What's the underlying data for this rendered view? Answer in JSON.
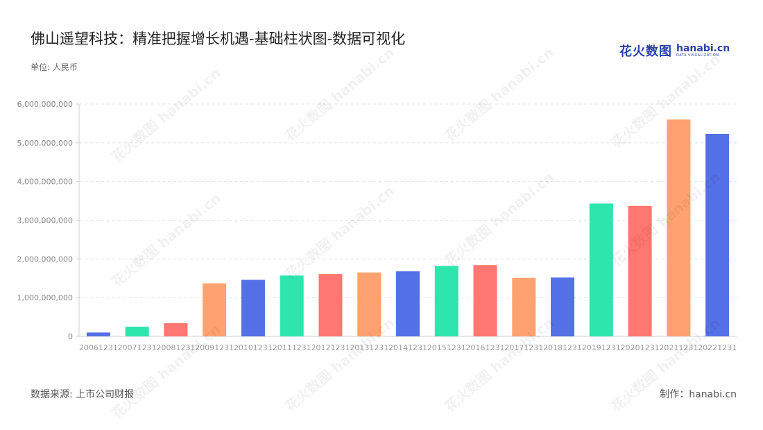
{
  "header": {
    "title": "佛山遥望科技：精准把握增长机遇-基础柱状图-数据可视化",
    "unit": "单位: 人民币"
  },
  "logo": {
    "cn": "花火数图",
    "en": "hanabi.cn",
    "sub": "DATA VISUALIZATION"
  },
  "footer": {
    "source": "数据来源: 上市公司财报",
    "maker": "制作：hanabi.cn"
  },
  "watermark": {
    "text": "花火数图 hanabi.cn"
  },
  "chart_data": {
    "type": "bar",
    "categories": [
      "20061231",
      "20071231",
      "20081231",
      "20091231",
      "20101231",
      "20111231",
      "20121231",
      "20131231",
      "20141231",
      "20151231",
      "20161231",
      "20171231",
      "20181231",
      "20191231",
      "20201231",
      "20211231",
      "20221231"
    ],
    "values": [
      100000000,
      250000000,
      340000000,
      1370000000,
      1460000000,
      1570000000,
      1610000000,
      1650000000,
      1680000000,
      1820000000,
      1840000000,
      1510000000,
      1520000000,
      3430000000,
      3370000000,
      5600000000,
      5230000000
    ],
    "colors": [
      "#5470e6",
      "#2ee5ad",
      "#ff7770",
      "#ffa26f",
      "#5470e6",
      "#2ee5ad",
      "#ff7770",
      "#ffa26f",
      "#5470e6",
      "#2ee5ad",
      "#ff7770",
      "#ffa26f",
      "#5470e6",
      "#2ee5ad",
      "#ff7770",
      "#ffa26f",
      "#5470e6"
    ],
    "y_ticks": [
      "0",
      "1,000,000,000",
      "2,000,000,000",
      "3,000,000,000",
      "4,000,000,000",
      "5,000,000,000",
      "6,000,000,000"
    ],
    "ylim": [
      0,
      6000000000
    ],
    "grid": true,
    "title": "佛山遥望科技：精准把握增长机遇-基础柱状图-数据可视化",
    "ylabel": "单位: 人民币"
  }
}
